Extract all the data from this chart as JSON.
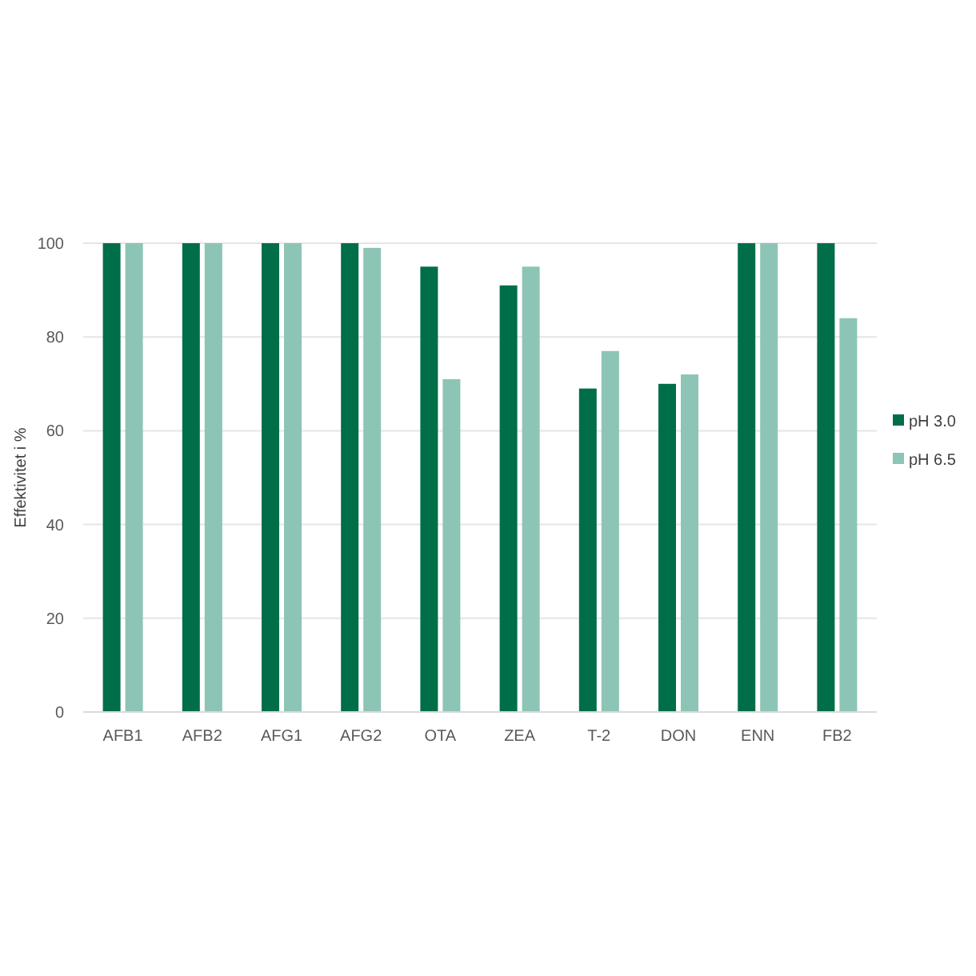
{
  "chart_data": {
    "type": "bar",
    "ylabel": "Effektivitet i %",
    "categories": [
      "AFB1",
      "AFB2",
      "AFG1",
      "AFG2",
      "OTA",
      "ZEA",
      "T-2",
      "DON",
      "ENN",
      "FB2"
    ],
    "series": [
      {
        "name": "pH 3.0",
        "color": "#006e48",
        "values": [
          100,
          100,
          100,
          100,
          95,
          91,
          69,
          70,
          100,
          100
        ]
      },
      {
        "name": "pH 6.5",
        "color": "#8cc5b5",
        "values": [
          100,
          100,
          100,
          99,
          71,
          95,
          77,
          72,
          100,
          84
        ]
      }
    ],
    "ylim": [
      0,
      100
    ],
    "yticks": [
      0,
      20,
      40,
      60,
      80,
      100
    ],
    "grid": "y",
    "legend": "right"
  }
}
